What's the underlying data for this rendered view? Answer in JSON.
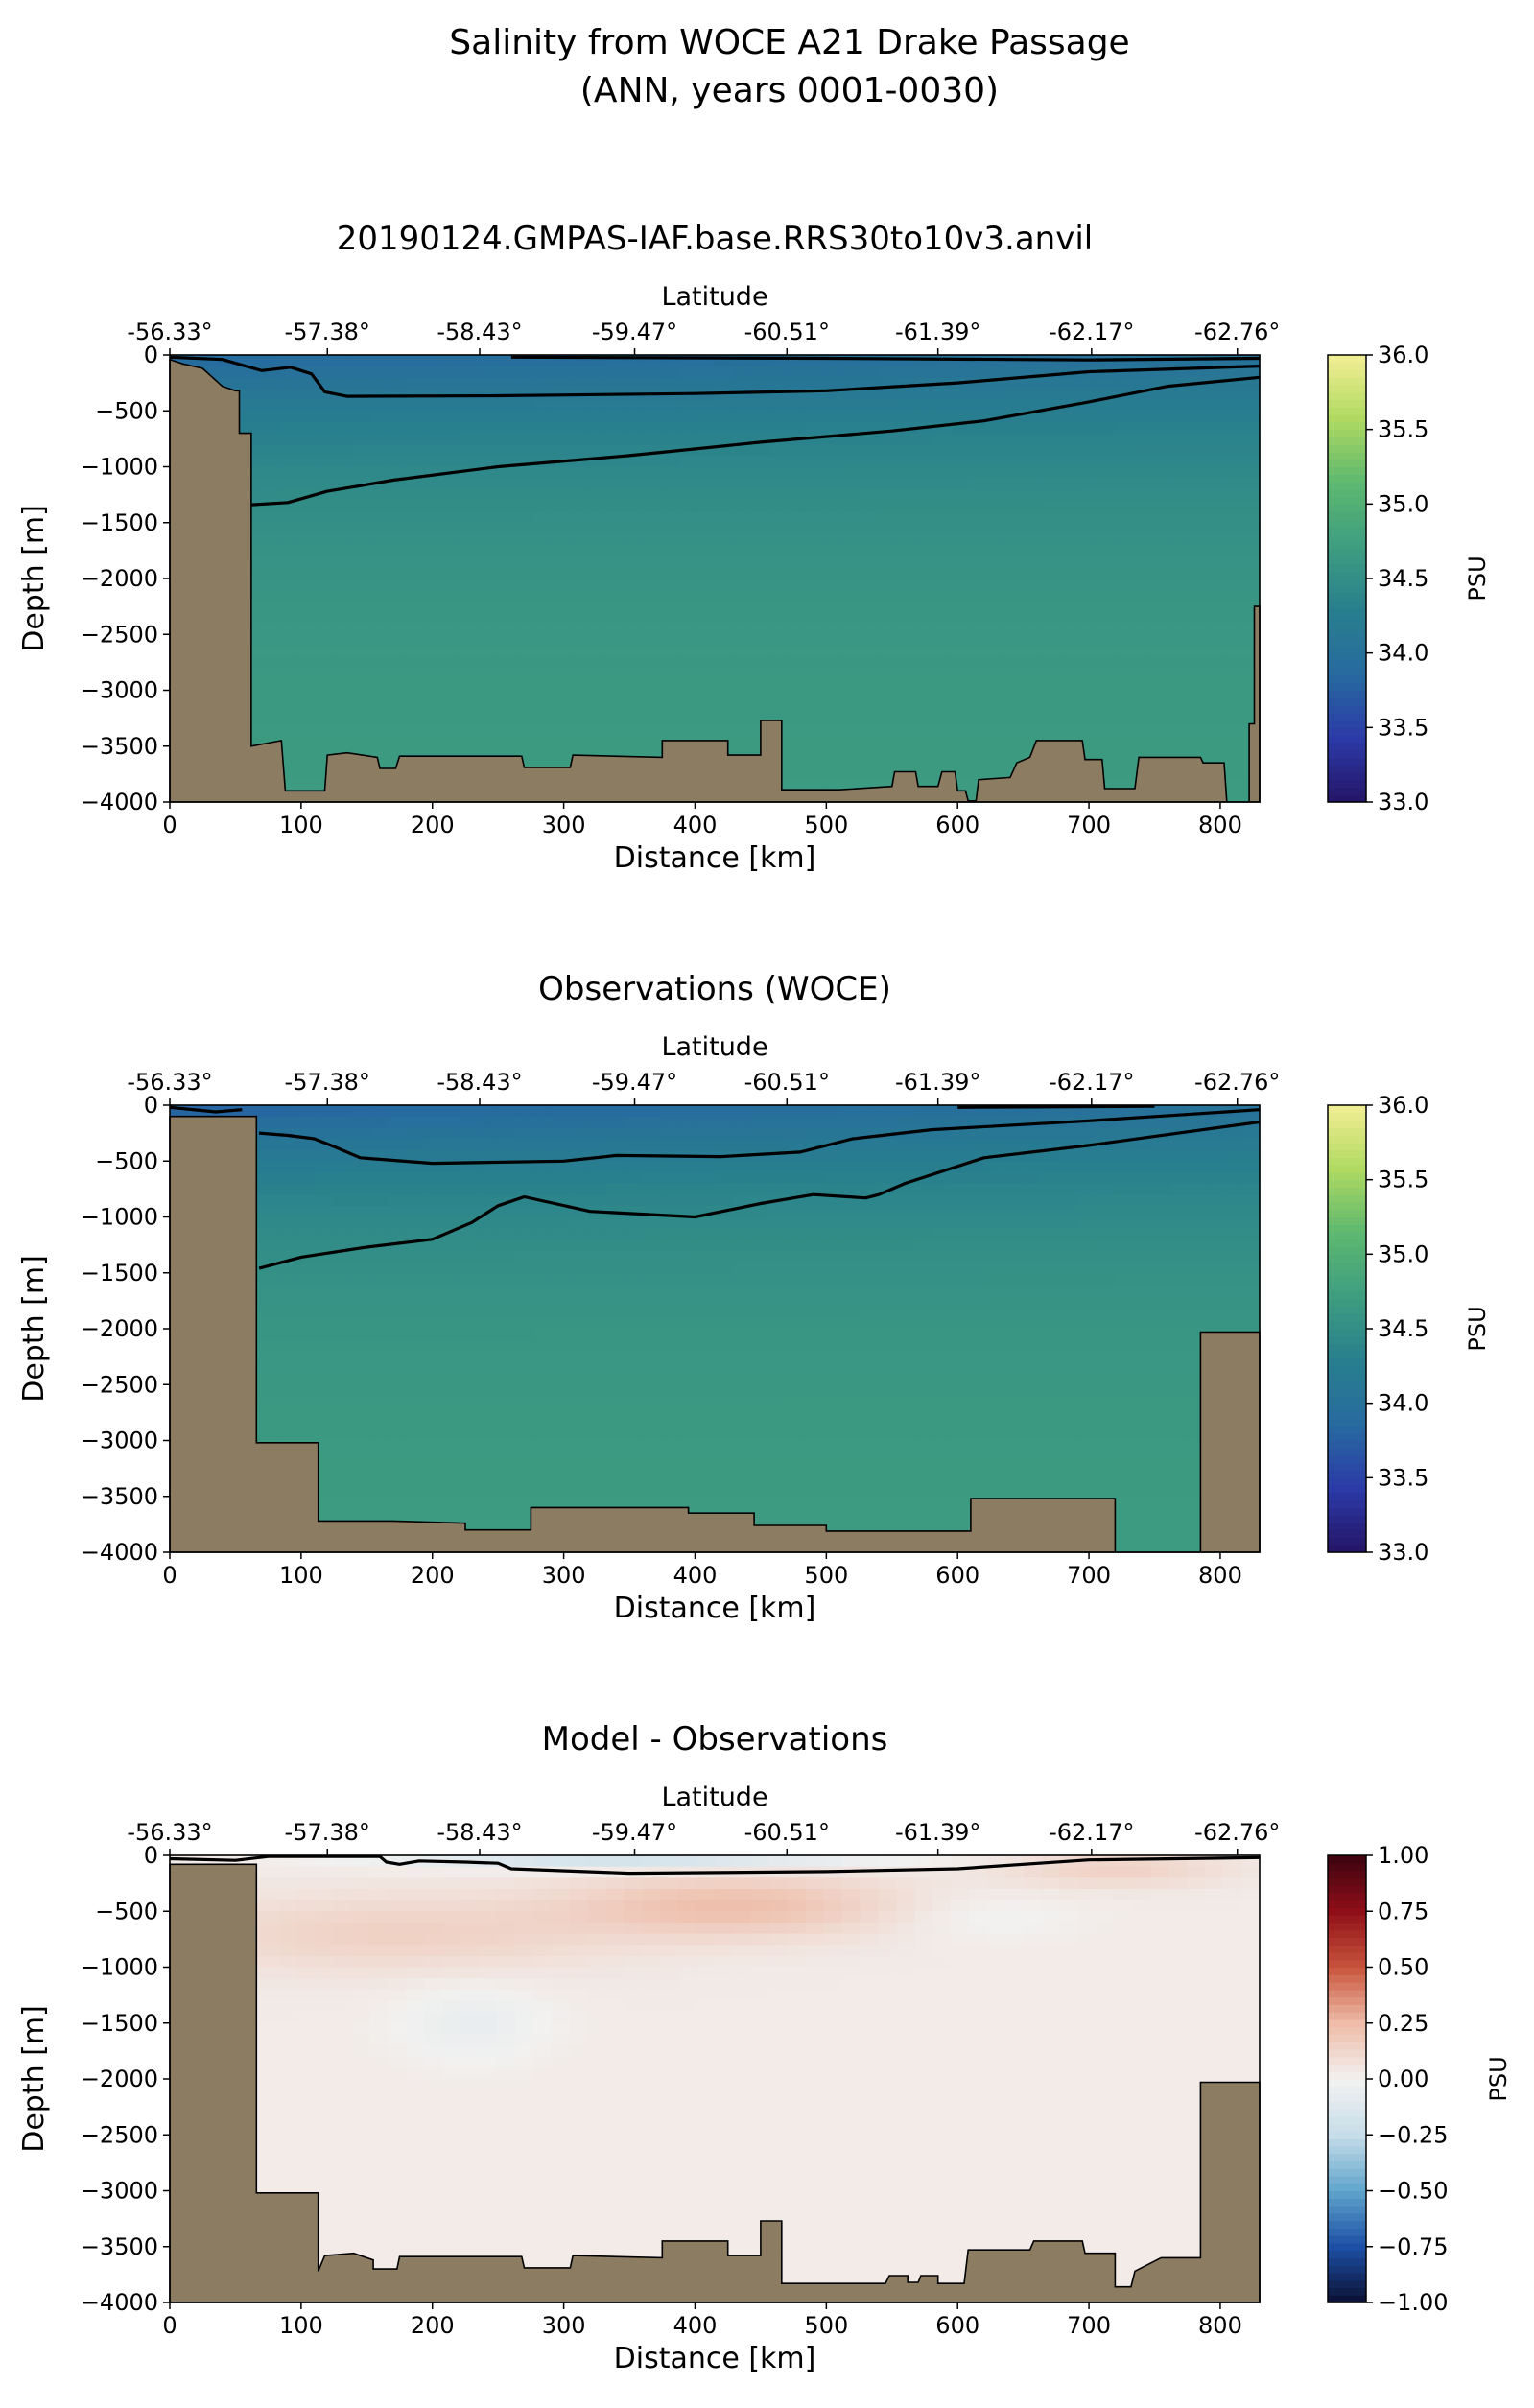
{
  "figure": {
    "title_line1": "Salinity from WOCE A21 Drake Passage",
    "title_line2": "(ANN, years 0001-0030)"
  },
  "colors": {
    "land": "#8c7c62",
    "salinity_ramp": [
      "#251466",
      "#2b3aa8",
      "#276aa0",
      "#287f8e",
      "#3e9d80",
      "#5cb870",
      "#aed960",
      "#f3ee94"
    ],
    "diff_ramp": [
      "#0b1033",
      "#1c4fa5",
      "#5fa4cc",
      "#c7dde9",
      "#f2f1f0",
      "#eebca8",
      "#c8553d",
      "#8f0f18",
      "#3d0310"
    ]
  },
  "chart_data": [
    {
      "type": "heatmap",
      "title": "20190124.GMPAS-IAF.base.RRS30to10v3.anvil",
      "xlabel": "Distance [km]",
      "ylabel": "Depth [m]",
      "top_xlabel": "Latitude",
      "xlim": [
        0,
        830
      ],
      "ylim": [
        -4000,
        0
      ],
      "x_ticks": [
        0,
        100,
        200,
        300,
        400,
        500,
        600,
        700,
        800
      ],
      "y_ticks": [
        0,
        -500,
        -1000,
        -1500,
        -2000,
        -2500,
        -3000,
        -3500,
        -4000
      ],
      "y_tick_labels": [
        "0",
        "−500",
        "−1000",
        "−1500",
        "−2000",
        "−2500",
        "−3000",
        "−3500",
        "−4000"
      ],
      "lat_ticks": [
        {
          "km": 0,
          "label": "-56.33°"
        },
        {
          "km": 120,
          "label": "-57.38°"
        },
        {
          "km": 236,
          "label": "-58.43°"
        },
        {
          "km": 354,
          "label": "-59.47°"
        },
        {
          "km": 470,
          "label": "-60.51°"
        },
        {
          "km": 585,
          "label": "-61.39°"
        },
        {
          "km": 702,
          "label": "-62.17°"
        },
        {
          "km": 813,
          "label": "-62.76°"
        }
      ],
      "colorbar": {
        "label": "PSU",
        "range": [
          33.0,
          36.0
        ],
        "ticks": [
          "33.0",
          "33.5",
          "34.0",
          "34.5",
          "35.0",
          "35.5",
          "36.0"
        ],
        "cmap": "salinity_ramp"
      },
      "field": {
        "surface": 34.0,
        "deep": 34.7,
        "scale_depth": 1100,
        "south_fresh": 0.15
      },
      "contours": [
        [
          [
            0,
            -20
          ],
          [
            40,
            -40
          ],
          [
            70,
            -140
          ],
          [
            92,
            -110
          ],
          [
            108,
            -170
          ],
          [
            118,
            -330
          ],
          [
            135,
            -370
          ],
          [
            250,
            -365
          ],
          [
            400,
            -345
          ],
          [
            500,
            -320
          ],
          [
            600,
            -250
          ],
          [
            700,
            -150
          ],
          [
            830,
            -100
          ]
        ],
        [
          [
            260,
            -20
          ],
          [
            500,
            -30
          ],
          [
            700,
            -45
          ],
          [
            830,
            -30
          ]
        ],
        [
          [
            62,
            -1340
          ],
          [
            90,
            -1320
          ],
          [
            120,
            -1220
          ],
          [
            170,
            -1120
          ],
          [
            250,
            -1000
          ],
          [
            350,
            -900
          ],
          [
            450,
            -780
          ],
          [
            550,
            -680
          ],
          [
            620,
            -590
          ],
          [
            700,
            -420
          ],
          [
            760,
            -280
          ],
          [
            830,
            -200
          ]
        ]
      ],
      "bathymetry": [
        [
          0,
          -40
        ],
        [
          10,
          -80
        ],
        [
          25,
          -120
        ],
        [
          40,
          -280
        ],
        [
          50,
          -320
        ],
        [
          53,
          -320
        ],
        [
          53,
          -700
        ],
        [
          62,
          -700
        ],
        [
          62,
          -3500
        ],
        [
          85,
          -3450
        ],
        [
          88,
          -3900
        ],
        [
          118,
          -3900
        ],
        [
          120,
          -3580
        ],
        [
          135,
          -3560
        ],
        [
          158,
          -3600
        ],
        [
          160,
          -3700
        ],
        [
          172,
          -3700
        ],
        [
          175,
          -3590
        ],
        [
          268,
          -3590
        ],
        [
          270,
          -3690
        ],
        [
          305,
          -3690
        ],
        [
          307,
          -3580
        ],
        [
          375,
          -3600
        ],
        [
          375,
          -3450
        ],
        [
          425,
          -3450
        ],
        [
          425,
          -3580
        ],
        [
          450,
          -3580
        ],
        [
          450,
          -3270
        ],
        [
          466,
          -3270
        ],
        [
          466,
          -3890
        ],
        [
          510,
          -3890
        ],
        [
          550,
          -3860
        ],
        [
          552,
          -3730
        ],
        [
          568,
          -3730
        ],
        [
          570,
          -3860
        ],
        [
          585,
          -3860
        ],
        [
          588,
          -3730
        ],
        [
          598,
          -3730
        ],
        [
          600,
          -3900
        ],
        [
          606,
          -3900
        ],
        [
          608,
          -3990
        ],
        [
          614,
          -3990
        ],
        [
          616,
          -3800
        ],
        [
          640,
          -3780
        ],
        [
          645,
          -3650
        ],
        [
          655,
          -3600
        ],
        [
          660,
          -3450
        ],
        [
          695,
          -3450
        ],
        [
          697,
          -3620
        ],
        [
          710,
          -3620
        ],
        [
          712,
          -3880
        ],
        [
          735,
          -3880
        ],
        [
          738,
          -3600
        ],
        [
          785,
          -3600
        ],
        [
          787,
          -3650
        ],
        [
          803,
          -3650
        ],
        [
          805,
          -4000
        ],
        [
          822,
          -4000
        ],
        [
          822,
          -3300
        ],
        [
          826,
          -3300
        ],
        [
          826,
          -2250
        ],
        [
          830,
          -2250
        ]
      ]
    },
    {
      "type": "heatmap",
      "title": "Observations (WOCE)",
      "xlabel": "Distance [km]",
      "ylabel": "Depth [m]",
      "top_xlabel": "Latitude",
      "xlim": [
        0,
        830
      ],
      "ylim": [
        -4000,
        0
      ],
      "x_ticks": [
        0,
        100,
        200,
        300,
        400,
        500,
        600,
        700,
        800
      ],
      "y_ticks": [
        0,
        -500,
        -1000,
        -1500,
        -2000,
        -2500,
        -3000,
        -3500,
        -4000
      ],
      "y_tick_labels": [
        "0",
        "−500",
        "−1000",
        "−1500",
        "−2000",
        "−2500",
        "−3000",
        "−3500",
        "−4000"
      ],
      "lat_ticks": [
        {
          "km": 0,
          "label": "-56.33°"
        },
        {
          "km": 120,
          "label": "-57.38°"
        },
        {
          "km": 236,
          "label": "-58.43°"
        },
        {
          "km": 354,
          "label": "-59.47°"
        },
        {
          "km": 470,
          "label": "-60.51°"
        },
        {
          "km": 585,
          "label": "-61.39°"
        },
        {
          "km": 702,
          "label": "-62.17°"
        },
        {
          "km": 813,
          "label": "-62.76°"
        }
      ],
      "colorbar": {
        "label": "PSU",
        "range": [
          33.0,
          36.0
        ],
        "ticks": [
          "33.0",
          "33.5",
          "34.0",
          "34.5",
          "35.0",
          "35.5",
          "36.0"
        ],
        "cmap": "salinity_ramp"
      },
      "field": {
        "surface": 34.0,
        "deep": 34.7,
        "scale_depth": 1000,
        "south_fresh": 0.25
      },
      "contours": [
        [
          [
            68,
            -250
          ],
          [
            90,
            -270
          ],
          [
            110,
            -300
          ],
          [
            125,
            -370
          ],
          [
            145,
            -470
          ],
          [
            200,
            -520
          ],
          [
            300,
            -500
          ],
          [
            340,
            -450
          ],
          [
            420,
            -460
          ],
          [
            480,
            -420
          ],
          [
            520,
            -300
          ],
          [
            580,
            -220
          ],
          [
            700,
            -140
          ],
          [
            830,
            -40
          ]
        ],
        [
          [
            68,
            -1460
          ],
          [
            100,
            -1360
          ],
          [
            150,
            -1270
          ],
          [
            200,
            -1200
          ],
          [
            230,
            -1050
          ],
          [
            250,
            -900
          ],
          [
            270,
            -820
          ],
          [
            320,
            -950
          ],
          [
            400,
            -1000
          ],
          [
            450,
            -880
          ],
          [
            490,
            -800
          ],
          [
            530,
            -830
          ],
          [
            540,
            -800
          ],
          [
            560,
            -700
          ],
          [
            620,
            -470
          ],
          [
            700,
            -360
          ],
          [
            830,
            -150
          ]
        ],
        [
          [
            0,
            -20
          ],
          [
            35,
            -60
          ],
          [
            55,
            -40
          ]
        ],
        [
          [
            600,
            -20
          ],
          [
            750,
            -10
          ]
        ]
      ],
      "bathymetry": [
        [
          0,
          -100
        ],
        [
          66,
          -100
        ],
        [
          66,
          -3020
        ],
        [
          113,
          -3020
        ],
        [
          113,
          -3720
        ],
        [
          170,
          -3720
        ],
        [
          225,
          -3740
        ],
        [
          225,
          -3800
        ],
        [
          275,
          -3800
        ],
        [
          275,
          -3600
        ],
        [
          395,
          -3600
        ],
        [
          395,
          -3650
        ],
        [
          445,
          -3650
        ],
        [
          445,
          -3760
        ],
        [
          500,
          -3760
        ],
        [
          500,
          -3810
        ],
        [
          610,
          -3810
        ],
        [
          610,
          -3520
        ],
        [
          720,
          -3520
        ],
        [
          720,
          -4000
        ],
        [
          785,
          -4000
        ],
        [
          785,
          -2030
        ],
        [
          830,
          -2030
        ]
      ]
    },
    {
      "type": "heatmap",
      "title": "Model - Observations",
      "xlabel": "Distance [km]",
      "ylabel": "Depth [m]",
      "top_xlabel": "Latitude",
      "xlim": [
        0,
        830
      ],
      "ylim": [
        -4000,
        0
      ],
      "x_ticks": [
        0,
        100,
        200,
        300,
        400,
        500,
        600,
        700,
        800
      ],
      "y_ticks": [
        0,
        -500,
        -1000,
        -1500,
        -2000,
        -2500,
        -3000,
        -3500,
        -4000
      ],
      "y_tick_labels": [
        "0",
        "−500",
        "−1000",
        "−1500",
        "−2000",
        "−2500",
        "−3000",
        "−3500",
        "−4000"
      ],
      "lat_ticks": [
        {
          "km": 0,
          "label": "-56.33°"
        },
        {
          "km": 120,
          "label": "-57.38°"
        },
        {
          "km": 236,
          "label": "-58.43°"
        },
        {
          "km": 354,
          "label": "-59.47°"
        },
        {
          "km": 470,
          "label": "-60.51°"
        },
        {
          "km": 585,
          "label": "-61.39°"
        },
        {
          "km": 702,
          "label": "-62.17°"
        },
        {
          "km": 813,
          "label": "-62.76°"
        }
      ],
      "colorbar": {
        "label": "PSU",
        "range": [
          -1.0,
          1.0
        ],
        "ticks": [
          "−1.00",
          "−0.75",
          "−0.50",
          "−0.25",
          "0.00",
          "0.25",
          "0.50",
          "0.75",
          "1.00"
        ],
        "cmap": "diff_ramp"
      },
      "field": {
        "anomaly": true
      },
      "contours": [
        [
          [
            0,
            -30
          ],
          [
            50,
            -45
          ],
          [
            75,
            -10
          ],
          [
            160,
            -10
          ],
          [
            165,
            -60
          ],
          [
            175,
            -80
          ],
          [
            190,
            -50
          ],
          [
            225,
            -60
          ],
          [
            250,
            -70
          ],
          [
            260,
            -120
          ],
          [
            350,
            -160
          ],
          [
            500,
            -145
          ],
          [
            600,
            -120
          ],
          [
            700,
            -40
          ],
          [
            830,
            -20
          ]
        ]
      ],
      "bathymetry": [
        [
          0,
          -80
        ],
        [
          66,
          -80
        ],
        [
          66,
          -3020
        ],
        [
          113,
          -3020
        ],
        [
          113,
          -3720
        ],
        [
          118,
          -3580
        ],
        [
          140,
          -3560
        ],
        [
          155,
          -3620
        ],
        [
          155,
          -3700
        ],
        [
          173,
          -3700
        ],
        [
          175,
          -3590
        ],
        [
          268,
          -3590
        ],
        [
          270,
          -3690
        ],
        [
          305,
          -3690
        ],
        [
          307,
          -3580
        ],
        [
          375,
          -3600
        ],
        [
          375,
          -3450
        ],
        [
          425,
          -3450
        ],
        [
          425,
          -3580
        ],
        [
          450,
          -3580
        ],
        [
          450,
          -3270
        ],
        [
          466,
          -3270
        ],
        [
          466,
          -3830
        ],
        [
          545,
          -3830
        ],
        [
          548,
          -3760
        ],
        [
          562,
          -3760
        ],
        [
          562,
          -3820
        ],
        [
          570,
          -3820
        ],
        [
          572,
          -3760
        ],
        [
          585,
          -3760
        ],
        [
          585,
          -3830
        ],
        [
          605,
          -3830
        ],
        [
          608,
          -3530
        ],
        [
          655,
          -3530
        ],
        [
          658,
          -3450
        ],
        [
          695,
          -3450
        ],
        [
          697,
          -3560
        ],
        [
          720,
          -3560
        ],
        [
          720,
          -3860
        ],
        [
          732,
          -3860
        ],
        [
          735,
          -3720
        ],
        [
          755,
          -3600
        ],
        [
          785,
          -3600
        ],
        [
          785,
          -2030
        ],
        [
          830,
          -2030
        ]
      ]
    }
  ]
}
